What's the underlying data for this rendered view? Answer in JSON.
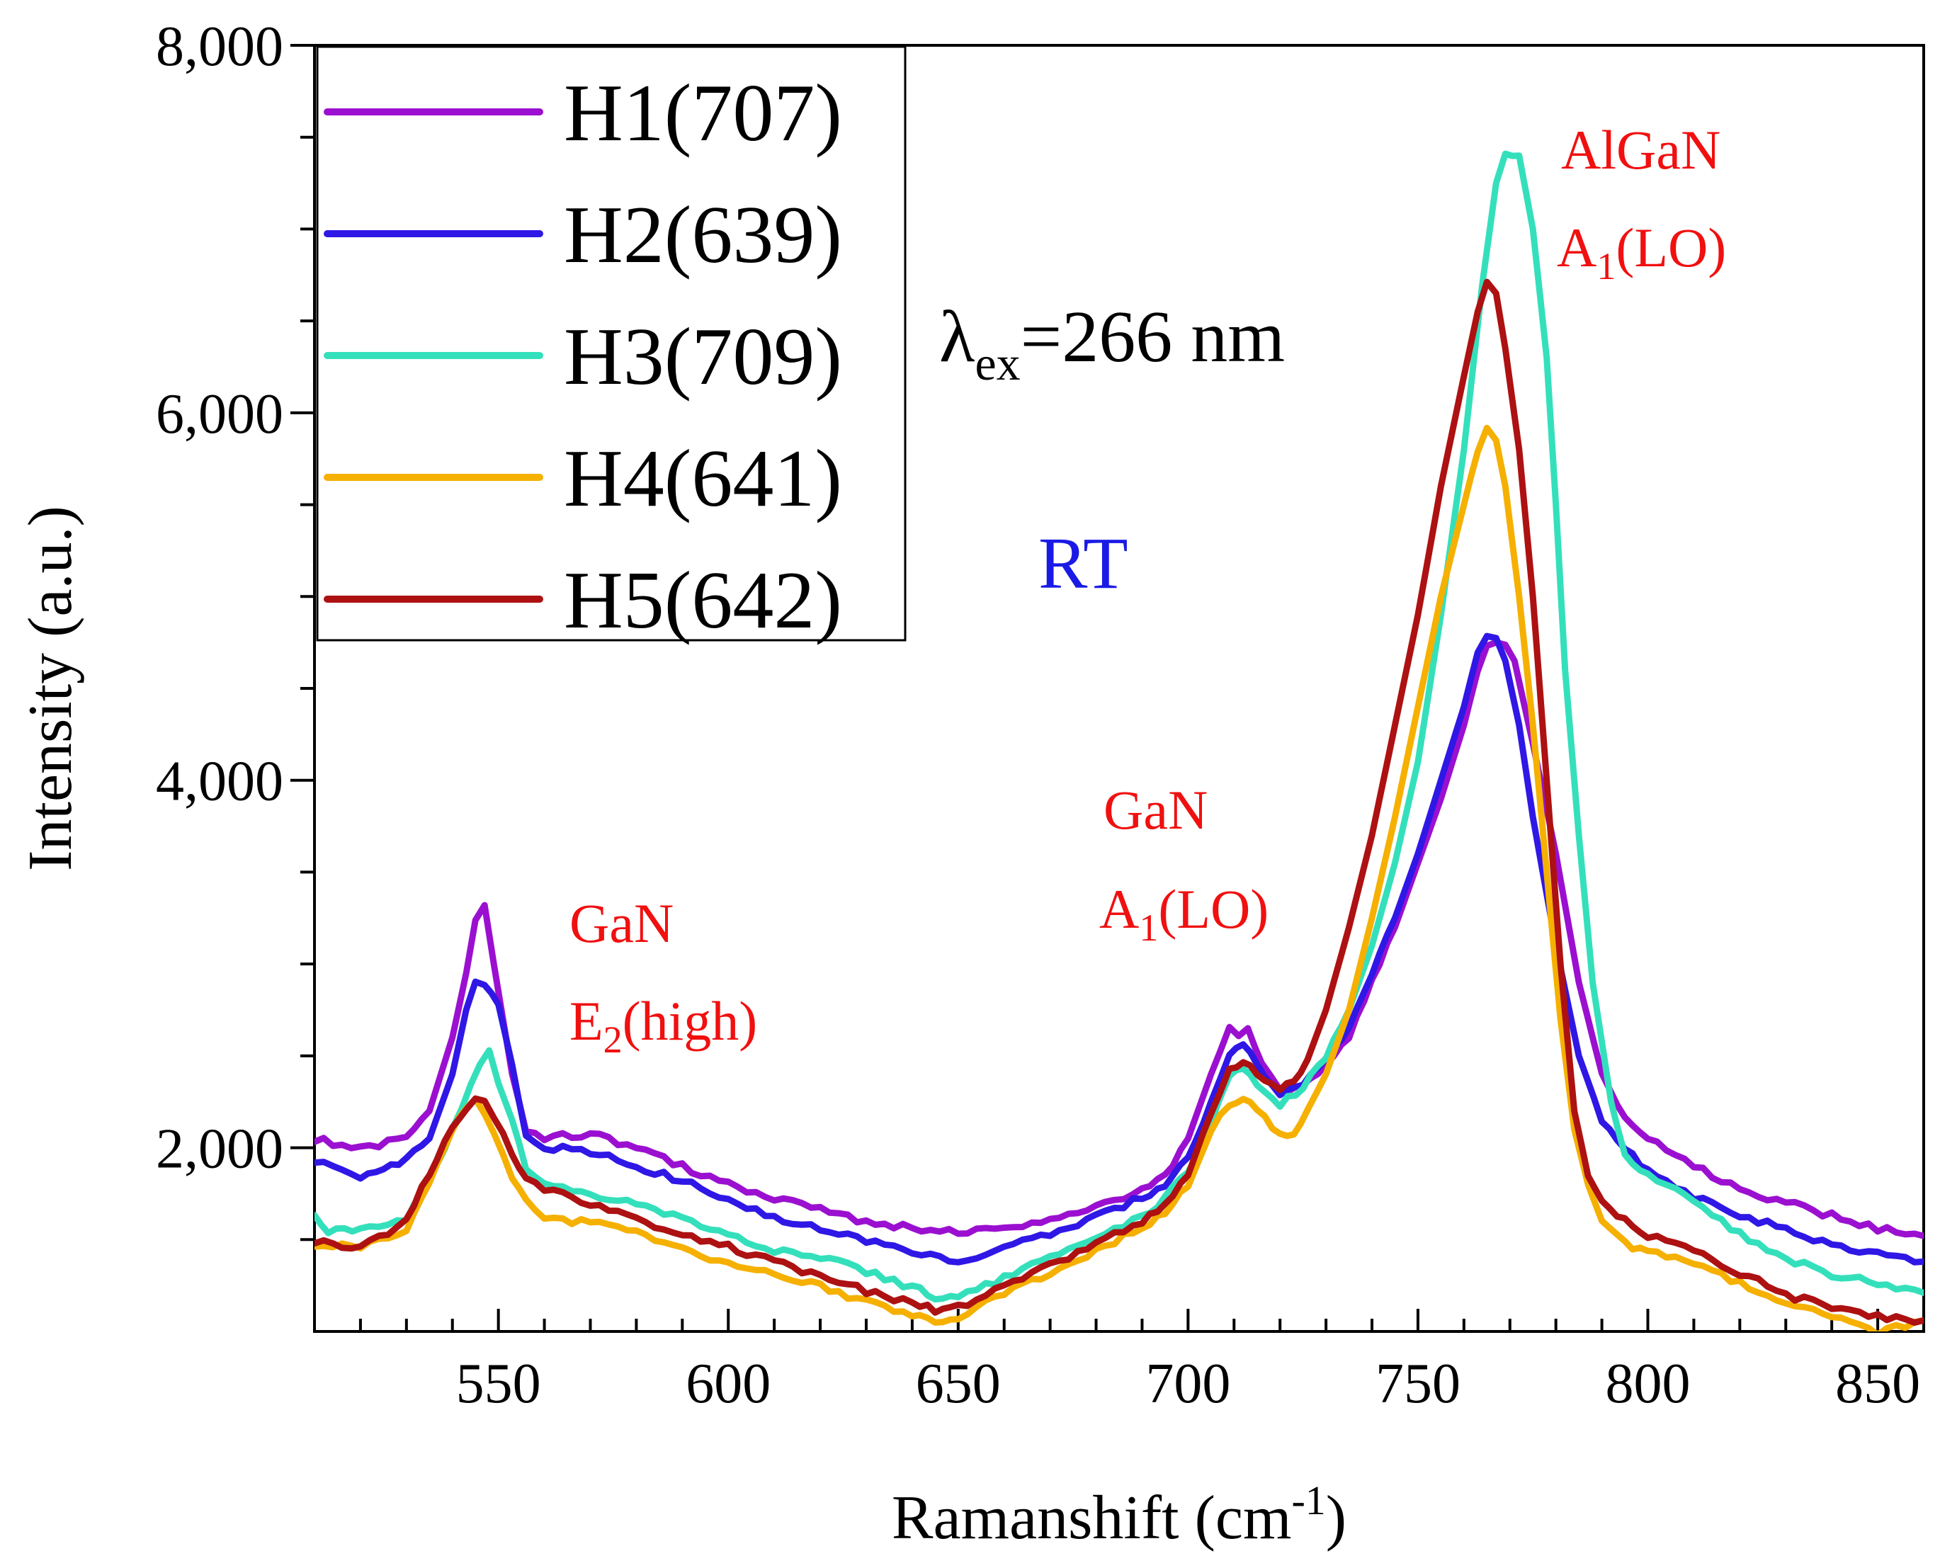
{
  "chart_data": {
    "type": "line",
    "xlabel_main": "Ramanshift (cm",
    "xlabel_sup": "-1",
    "xlabel_close": ")",
    "ylabel": "Intensity (a.u.)",
    "xlim": [
      510,
      860
    ],
    "ylim": [
      1000,
      8000
    ],
    "xticks": [
      550,
      600,
      650,
      700,
      750,
      800,
      850
    ],
    "xtick_labels": [
      "550",
      "600",
      "650",
      "700",
      "750",
      "800",
      "850"
    ],
    "yticks": [
      2000,
      4000,
      6000,
      8000
    ],
    "ytick_labels": [
      "2,000",
      "4,000",
      "6,000",
      "8,000"
    ],
    "grid": false,
    "legend_position": "top-left",
    "series": [
      {
        "name": "H1(707)",
        "color": "#9b10d0",
        "x": [
          510,
          520,
          530,
          535,
          540,
          543,
          545,
          547,
          549,
          551,
          553,
          556,
          560,
          570,
          580,
          590,
          600,
          610,
          620,
          630,
          640,
          650,
          660,
          670,
          680,
          690,
          695,
          700,
          705,
          709,
          711,
          713,
          716,
          720,
          725,
          730,
          735,
          740,
          745,
          750,
          755,
          760,
          763,
          765,
          767,
          769,
          771,
          775,
          780,
          785,
          790,
          795,
          800,
          810,
          820,
          830,
          840,
          850,
          860
        ],
        "y": [
          2050,
          1990,
          2050,
          2200,
          2600,
          2950,
          3250,
          3320,
          3000,
          2700,
          2400,
          2100,
          2050,
          2080,
          2000,
          1900,
          1800,
          1730,
          1660,
          1600,
          1560,
          1540,
          1560,
          1600,
          1680,
          1770,
          1850,
          2050,
          2400,
          2650,
          2620,
          2650,
          2450,
          2300,
          2330,
          2450,
          2600,
          2900,
          3200,
          3550,
          3900,
          4300,
          4600,
          4720,
          4760,
          4730,
          4650,
          4200,
          3600,
          2900,
          2400,
          2150,
          2050,
          1900,
          1780,
          1700,
          1630,
          1560,
          1520
        ]
      },
      {
        "name": "H2(639)",
        "color": "#2f17e6",
        "x": [
          510,
          520,
          525,
          530,
          535,
          540,
          543,
          545,
          547,
          550,
          553,
          556,
          560,
          570,
          580,
          590,
          600,
          610,
          620,
          630,
          640,
          650,
          660,
          670,
          680,
          690,
          695,
          700,
          705,
          709,
          712,
          715,
          720,
          725,
          730,
          735,
          740,
          745,
          750,
          755,
          760,
          763,
          765,
          767,
          769,
          772,
          775,
          780,
          785,
          790,
          795,
          800,
          810,
          820,
          830,
          840,
          850,
          860
        ],
        "y": [
          1930,
          1850,
          1870,
          1950,
          2050,
          2400,
          2750,
          2900,
          2900,
          2780,
          2450,
          2050,
          2000,
          1980,
          1900,
          1820,
          1720,
          1620,
          1560,
          1500,
          1420,
          1390,
          1450,
          1530,
          1620,
          1730,
          1800,
          1950,
          2250,
          2500,
          2560,
          2450,
          2300,
          2350,
          2480,
          2650,
          2950,
          3250,
          3600,
          4000,
          4400,
          4700,
          4800,
          4770,
          4650,
          4300,
          3800,
          3100,
          2500,
          2150,
          2000,
          1870,
          1730,
          1630,
          1560,
          1470,
          1420,
          1380
        ]
      },
      {
        "name": "H3(709)",
        "color": "#34e0bb",
        "x": [
          510,
          513,
          520,
          530,
          535,
          540,
          544,
          546,
          548,
          550,
          553,
          556,
          560,
          570,
          580,
          590,
          600,
          610,
          620,
          630,
          640,
          645,
          650,
          660,
          670,
          680,
          690,
          695,
          700,
          705,
          709,
          712,
          715,
          720,
          725,
          730,
          735,
          740,
          745,
          750,
          755,
          760,
          764,
          767,
          769,
          772,
          775,
          778,
          780,
          782,
          785,
          788,
          792,
          795,
          800,
          810,
          820,
          830,
          840,
          850,
          860
        ],
        "y": [
          1650,
          1540,
          1560,
          1620,
          1820,
          2100,
          2330,
          2450,
          2530,
          2350,
          2150,
          1900,
          1800,
          1750,
          1700,
          1620,
          1520,
          1440,
          1400,
          1330,
          1240,
          1190,
          1190,
          1290,
          1400,
          1510,
          1620,
          1730,
          1860,
          2140,
          2380,
          2430,
          2340,
          2240,
          2330,
          2500,
          2750,
          3100,
          3550,
          4100,
          4900,
          5800,
          6700,
          7250,
          7420,
          7400,
          7000,
          6300,
          5500,
          4600,
          3700,
          2900,
          2250,
          1950,
          1850,
          1720,
          1530,
          1400,
          1310,
          1260,
          1210
        ]
      },
      {
        "name": "H4(641)",
        "color": "#f5b000",
        "x": [
          510,
          520,
          530,
          535,
          540,
          543,
          545,
          547,
          549,
          551,
          553,
          556,
          560,
          570,
          580,
          590,
          600,
          610,
          620,
          630,
          640,
          645,
          650,
          660,
          670,
          680,
          690,
          695,
          700,
          705,
          709,
          712,
          715,
          720,
          723,
          726,
          730,
          735,
          740,
          745,
          750,
          755,
          760,
          763,
          765,
          767,
          769,
          772,
          775,
          778,
          781,
          784,
          787,
          790,
          795,
          800,
          810,
          820,
          830,
          840,
          850,
          860
        ],
        "y": [
          1470,
          1460,
          1560,
          1800,
          2100,
          2220,
          2270,
          2200,
          2080,
          1950,
          1850,
          1720,
          1620,
          1590,
          1540,
          1440,
          1380,
          1300,
          1250,
          1160,
          1100,
          1060,
          1080,
          1200,
          1320,
          1440,
          1570,
          1650,
          1800,
          2100,
          2240,
          2280,
          2200,
          2080,
          2080,
          2200,
          2400,
          2750,
          3250,
          3800,
          4400,
          5000,
          5500,
          5800,
          5900,
          5850,
          5600,
          5000,
          4300,
          3500,
          2700,
          2100,
          1800,
          1600,
          1480,
          1430,
          1380,
          1260,
          1160,
          1090,
          1000,
          1060
        ]
      },
      {
        "name": "H5(642)",
        "color": "#ad1111",
        "x": [
          510,
          520,
          530,
          535,
          540,
          543,
          545,
          547,
          549,
          551,
          553,
          556,
          560,
          570,
          580,
          590,
          600,
          610,
          620,
          630,
          640,
          645,
          650,
          660,
          670,
          680,
          690,
          695,
          700,
          705,
          709,
          712,
          715,
          720,
          723,
          726,
          730,
          735,
          740,
          745,
          750,
          755,
          760,
          763,
          765,
          767,
          769,
          772,
          775,
          778,
          781,
          784,
          787,
          790,
          795,
          800,
          810,
          820,
          830,
          840,
          850,
          860
        ],
        "y": [
          1490,
          1460,
          1600,
          1860,
          2100,
          2220,
          2270,
          2250,
          2150,
          2080,
          1950,
          1820,
          1770,
          1700,
          1620,
          1520,
          1460,
          1380,
          1300,
          1220,
          1150,
          1120,
          1130,
          1240,
          1360,
          1480,
          1600,
          1700,
          1850,
          2200,
          2420,
          2480,
          2400,
          2320,
          2360,
          2480,
          2750,
          3200,
          3700,
          4300,
          4900,
          5600,
          6200,
          6550,
          6700,
          6650,
          6350,
          5800,
          5000,
          4000,
          3000,
          2200,
          1850,
          1700,
          1600,
          1520,
          1440,
          1320,
          1200,
          1130,
          1080,
          1060
        ]
      }
    ],
    "annotations": [
      {
        "lines": [
          "GaN",
          "E2(high)"
        ],
        "color": "#f01010"
      },
      {
        "lines": [
          "GaN",
          "A1(LO)"
        ],
        "color": "#f01010"
      },
      {
        "lines": [
          "AlGaN",
          "A1(LO)"
        ],
        "color": "#f01010"
      },
      {
        "lines": [
          "λex=266 nm"
        ],
        "color": "#000000"
      },
      {
        "lines": [
          "RT"
        ],
        "color": "#1a1ae6"
      }
    ]
  },
  "labels": {
    "ann_gan_e2_1": "GaN",
    "ann_gan_e2_2_main": "E",
    "ann_gan_e2_2_sub": "2",
    "ann_gan_e2_2_rest": "(high)",
    "ann_gan_a1_1": "GaN",
    "ann_gan_a1_2_main": "A",
    "ann_gan_a1_2_sub": "1",
    "ann_gan_a1_2_rest": "(LO)",
    "ann_algan_1": "AlGaN",
    "ann_algan_2_main": "A",
    "ann_algan_2_sub": "1",
    "ann_algan_2_rest": "(LO)",
    "lambda_main": "λ",
    "lambda_sub": "ex",
    "lambda_rest": "=266 nm",
    "rt": "RT"
  }
}
